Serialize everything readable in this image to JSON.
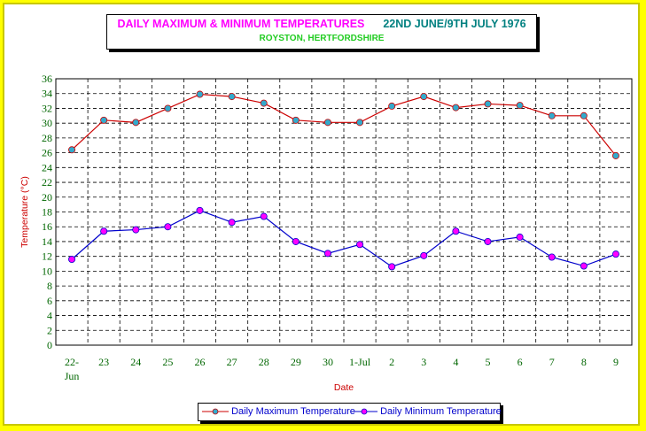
{
  "title": {
    "main": "DAILY MAXIMUM &  MINIMUM  TEMPERATURES",
    "date_range": "22ND JUNE/9TH JULY 1976",
    "subtitle": "ROYSTON, HERTFORDSHIRE"
  },
  "colors": {
    "background": "#ffff00",
    "title_main": "#ff00ff",
    "title_date": "#008080",
    "subtitle": "#22cc22",
    "axis_label": "#cc0000",
    "tick_label_x": "#006600",
    "tick_label_y": "#006600",
    "max_line": "#cc0000",
    "min_line": "#0000cc",
    "max_marker": "#33aacc",
    "min_marker": "#ff00ff"
  },
  "legend": {
    "max_label": "Daily Maximum Temperature",
    "min_label": "Daily Minimum  Temperature"
  },
  "chart_data": {
    "type": "line",
    "title": "DAILY MAXIMUM &  MINIMUM  TEMPERATURES",
    "subtitle": "ROYSTON, HERTFORDSHIRE",
    "xlabel": "Date",
    "ylabel": "Temperature (°C)",
    "ylim": [
      0,
      36
    ],
    "ytick_step": 2,
    "grid": true,
    "legend_position": "bottom",
    "categories": [
      [
        "22-",
        "Jun"
      ],
      [
        "23"
      ],
      [
        "24"
      ],
      [
        "25"
      ],
      [
        "26"
      ],
      [
        "27"
      ],
      [
        "28"
      ],
      [
        "29"
      ],
      [
        "30"
      ],
      [
        "1-Jul"
      ],
      [
        "2"
      ],
      [
        "3"
      ],
      [
        "4"
      ],
      [
        "5"
      ],
      [
        "6"
      ],
      [
        "7"
      ],
      [
        "8"
      ],
      [
        "9"
      ]
    ],
    "series": [
      {
        "name": "Daily Maximum Temperature",
        "values": [
          26.4,
          30.4,
          30.1,
          32.0,
          33.9,
          33.6,
          32.7,
          30.4,
          30.1,
          30.1,
          32.3,
          33.6,
          32.1,
          32.6,
          32.4,
          31.0,
          31.0,
          25.6
        ]
      },
      {
        "name": "Daily Minimum  Temperature",
        "values": [
          11.6,
          15.4,
          15.6,
          16.0,
          18.2,
          16.6,
          17.4,
          14.0,
          12.4,
          13.6,
          10.6,
          12.1,
          15.4,
          14.0,
          14.6,
          11.9,
          10.7,
          12.3
        ]
      }
    ]
  }
}
